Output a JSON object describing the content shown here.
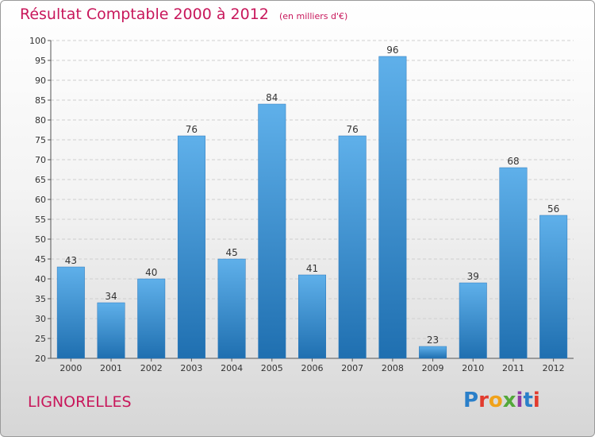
{
  "chart_data": {
    "type": "bar",
    "title": "Résultat Comptable 2000 à 2012",
    "subtitle": "(en milliers d'€)",
    "categories": [
      "2000",
      "2001",
      "2002",
      "2003",
      "2004",
      "2005",
      "2006",
      "2007",
      "2008",
      "2009",
      "2010",
      "2011",
      "2012"
    ],
    "values": [
      43,
      34,
      40,
      76,
      45,
      84,
      41,
      76,
      96,
      23,
      39,
      68,
      56
    ],
    "ylim": [
      20,
      100
    ],
    "yticks": [
      20,
      25,
      30,
      35,
      40,
      45,
      50,
      55,
      60,
      65,
      70,
      75,
      80,
      85,
      90,
      95,
      100
    ],
    "grid": true,
    "bar_color": "#3a8fd6"
  },
  "footer": {
    "city": "LIGNORELLES",
    "logo": [
      "P",
      "r",
      "o",
      "x",
      "i",
      "t",
      "i"
    ]
  },
  "colors": {
    "title": "#c8175b",
    "bar_top": "#5fb0ea",
    "bar_bottom": "#1f6fb0"
  }
}
